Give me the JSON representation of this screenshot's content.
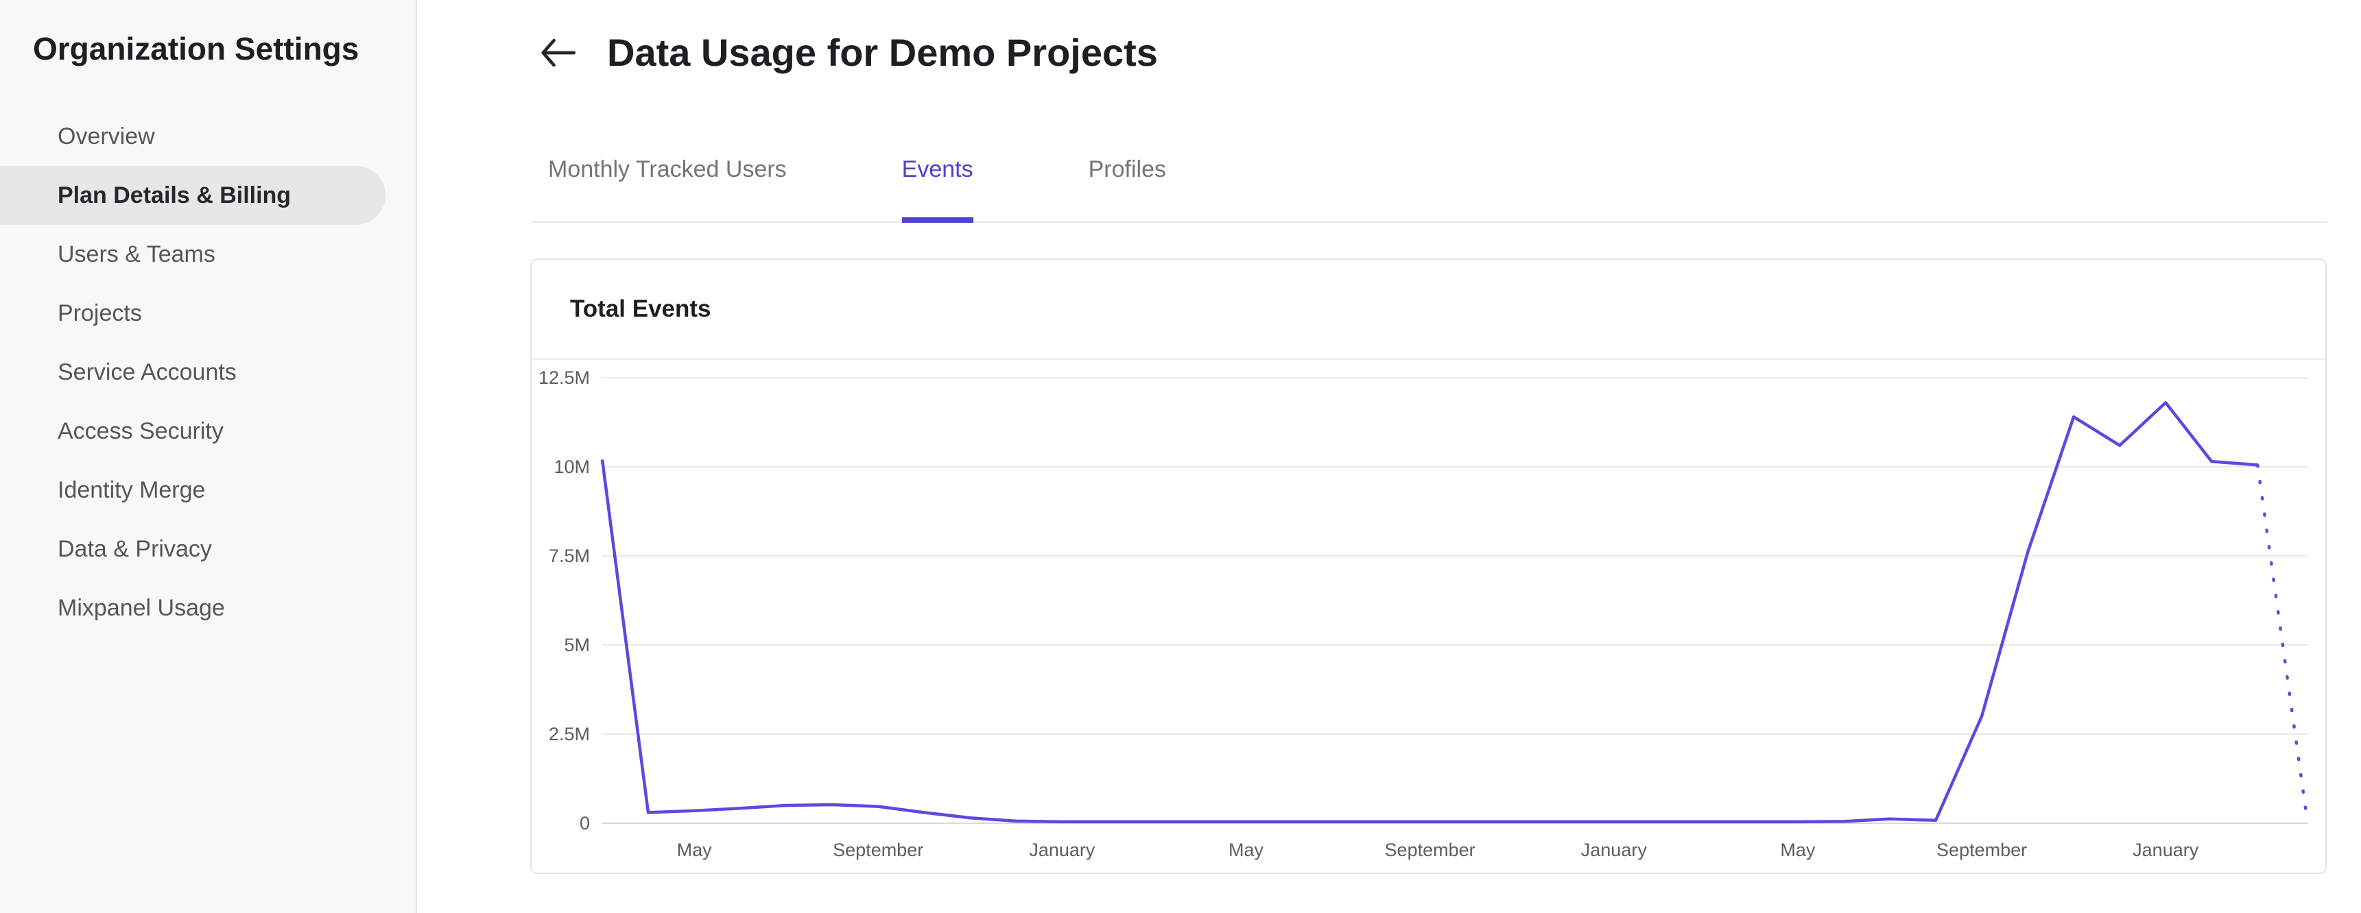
{
  "sidebar": {
    "title": "Organization Settings",
    "items": [
      {
        "label": "Overview",
        "active": false
      },
      {
        "label": "Plan Details & Billing",
        "active": true
      },
      {
        "label": "Users & Teams",
        "active": false
      },
      {
        "label": "Projects",
        "active": false
      },
      {
        "label": "Service Accounts",
        "active": false
      },
      {
        "label": "Access Security",
        "active": false
      },
      {
        "label": "Identity Merge",
        "active": false
      },
      {
        "label": "Data & Privacy",
        "active": false
      },
      {
        "label": "Mixpanel Usage",
        "active": false
      }
    ]
  },
  "header": {
    "title": "Data Usage for Demo Projects",
    "back_icon": "back-arrow"
  },
  "tabs": [
    {
      "label": "Monthly Tracked Users",
      "active": false
    },
    {
      "label": "Events",
      "active": true
    },
    {
      "label": "Profiles",
      "active": false
    }
  ],
  "card": {
    "title": "Total Events"
  },
  "colors": {
    "accent": "#4b41d2",
    "chart_line": "#5a4ae0",
    "sidebar_bg": "#f8f8f8",
    "active_item_bg": "#e7e7e7",
    "gridline": "#e9e9e9"
  },
  "chart_data": {
    "type": "line",
    "title": "Total Events",
    "unit": "millions of events",
    "x_unit": "month-index (0 = start of plotted range)",
    "x_range": [
      0,
      37.1
    ],
    "ylim": [
      0,
      12.5
    ],
    "grid": true,
    "legend": "none",
    "line_color": "#5a4ae0",
    "yticks": [
      {
        "label": "12.5M",
        "value": 12.5
      },
      {
        "label": "10M",
        "value": 10
      },
      {
        "label": "7.5M",
        "value": 7.5
      },
      {
        "label": "5M",
        "value": 5
      },
      {
        "label": "2.5M",
        "value": 2.5
      },
      {
        "label": "0",
        "value": 0
      }
    ],
    "xticks": [
      {
        "label": "May",
        "index": 2
      },
      {
        "label": "September",
        "index": 6
      },
      {
        "label": "January",
        "index": 10
      },
      {
        "label": "May",
        "index": 14
      },
      {
        "label": "September",
        "index": 18
      },
      {
        "label": "January",
        "index": 22
      },
      {
        "label": "May",
        "index": 26
      },
      {
        "label": "September",
        "index": 30
      },
      {
        "label": "January",
        "index": 34
      }
    ],
    "solid_series": [
      [
        0,
        10.2
      ],
      [
        1,
        0.3
      ],
      [
        2,
        0.35
      ],
      [
        3,
        0.42
      ],
      [
        4,
        0.5
      ],
      [
        5,
        0.52
      ],
      [
        6,
        0.47
      ],
      [
        7,
        0.3
      ],
      [
        8,
        0.15
      ],
      [
        9,
        0.06
      ],
      [
        10,
        0.04
      ],
      [
        11,
        0.04
      ],
      [
        12,
        0.04
      ],
      [
        13,
        0.04
      ],
      [
        14,
        0.04
      ],
      [
        15,
        0.04
      ],
      [
        16,
        0.04
      ],
      [
        17,
        0.04
      ],
      [
        18,
        0.04
      ],
      [
        19,
        0.04
      ],
      [
        20,
        0.04
      ],
      [
        21,
        0.04
      ],
      [
        22,
        0.04
      ],
      [
        23,
        0.04
      ],
      [
        24,
        0.04
      ],
      [
        25,
        0.04
      ],
      [
        26,
        0.04
      ],
      [
        27,
        0.05
      ],
      [
        28,
        0.12
      ],
      [
        29,
        0.08
      ],
      [
        30,
        3.0
      ],
      [
        31,
        7.6
      ],
      [
        32,
        11.4
      ],
      [
        33,
        10.6
      ],
      [
        34,
        11.8
      ],
      [
        35,
        10.15
      ],
      [
        36,
        10.05
      ]
    ],
    "dashed_series": [
      [
        36,
        10.05
      ],
      [
        37.05,
        0.35
      ]
    ]
  }
}
